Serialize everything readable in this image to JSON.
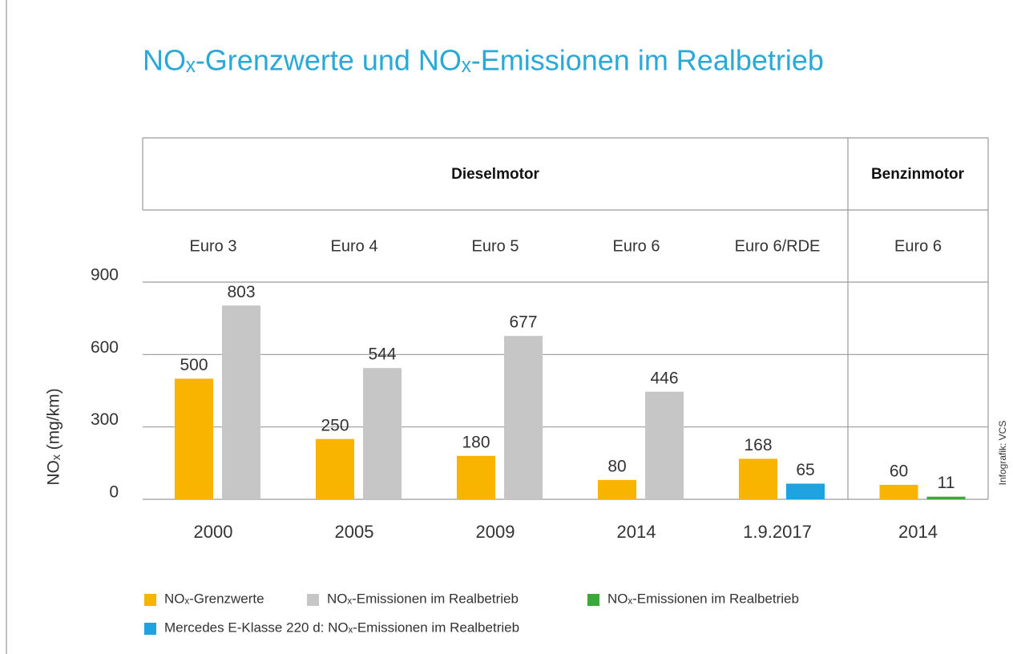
{
  "chart_data": {
    "type": "bar",
    "title": "NOₓ-Grenzwerte und NOₓ-Emissionen im Realbetrieb",
    "y_label": "NOₓ (mg/km)",
    "credit": "Infografik: VCS",
    "sections": [
      "Dieselmotor",
      "Benzinmotor"
    ],
    "groups": [
      "Euro 3",
      "Euro 4",
      "Euro 5",
      "Euro 6",
      "Euro 6/RDE",
      "Euro 6"
    ],
    "categories": [
      "2000",
      "2005",
      "2009",
      "2014",
      "1.9.2017",
      "2014"
    ],
    "series": [
      {
        "name": "NOₓ-Grenzwerte",
        "color": "#f9b400",
        "values": [
          500,
          250,
          180,
          80,
          168,
          60
        ]
      },
      {
        "name": "NOₓ-Emissionen im Realbetrieb",
        "color": "#c6c6c6",
        "values": [
          803,
          544,
          677,
          446,
          null,
          null
        ]
      },
      {
        "name": "NOₓ-Emissionen im Realbetrieb",
        "color": "#3aa83a",
        "values": [
          null,
          null,
          null,
          null,
          null,
          11
        ]
      },
      {
        "name": "Mercedes E-Klasse 220 d: NOₓ-Emissionen im Realbetrieb",
        "color": "#1ea3e0",
        "values": [
          null,
          null,
          null,
          null,
          65,
          null
        ]
      }
    ],
    "ylim": [
      0,
      900
    ],
    "yticks": [
      0,
      300,
      600,
      900
    ],
    "grid": true
  }
}
